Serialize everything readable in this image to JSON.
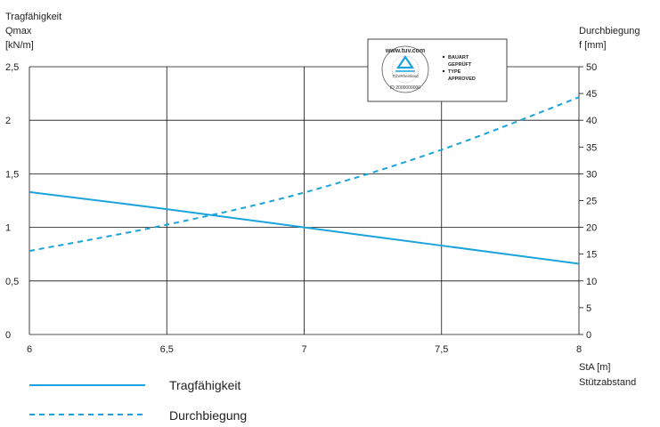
{
  "chart_data": {
    "type": "line",
    "xlabel": [
      "StA [m]",
      "Stützabstand"
    ],
    "ylabel_left": [
      "Tragfähigkeit",
      "Qmax",
      "[kN/m]"
    ],
    "ylabel_right": [
      "Durchbiegung",
      "f [mm]"
    ],
    "xlim": [
      6,
      8
    ],
    "ylim_left": [
      0,
      2.5
    ],
    "ylim_right": [
      0,
      50
    ],
    "x_ticks": [
      "6",
      "6,5",
      "7",
      "7,5",
      "8"
    ],
    "y_left_ticks": [
      "0",
      "0,5",
      "1",
      "1,5",
      "2",
      "2,5"
    ],
    "y_right_ticks": [
      "0",
      "5",
      "10",
      "15",
      "20",
      "25",
      "30",
      "35",
      "40",
      "45",
      "50"
    ],
    "grid": true,
    "series": [
      {
        "name": "Tragfähigkeit",
        "axis": "left",
        "style": "solid",
        "color": "#1aa3dc",
        "x": [
          6,
          6.5,
          7,
          7.5,
          8
        ],
        "y": [
          1.33,
          1.17,
          1.0,
          0.83,
          0.66
        ]
      },
      {
        "name": "Durchbiegung",
        "axis": "right",
        "style": "dashed",
        "color": "#1aa3dc",
        "x": [
          6,
          6.5,
          7,
          7.5,
          8
        ],
        "y": [
          15.6,
          20.5,
          26.5,
          34.5,
          44.3
        ]
      }
    ]
  },
  "badge": {
    "seal_text_top": "www.tuv.com",
    "seal_text_bottom": "ID 2000000000",
    "seal_brand": "TÜVRheinland",
    "lines": [
      "BAUART",
      "GEPRÜFT",
      "TYPE",
      "APPROVED"
    ]
  }
}
